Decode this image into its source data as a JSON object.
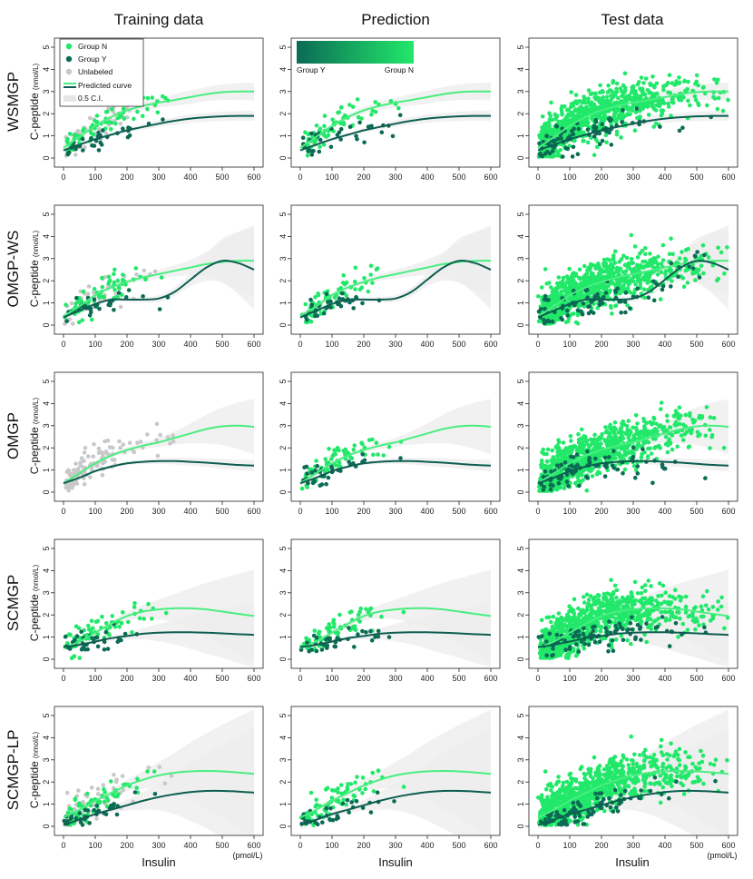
{
  "columns": [
    "Training data",
    "Prediction",
    "Test data"
  ],
  "rows": [
    "WSMGP",
    "OMGP-WS",
    "OMGP",
    "SCMGP",
    "SCMGP-LP"
  ],
  "ylabel": "C-peptide",
  "yunit": "(nmol/L)",
  "xlabel": "Insulin",
  "xunit": "(pmol/L)",
  "legend": {
    "group_n": "Group N",
    "group_y": "Group Y",
    "unlabeled": "Unlabeled",
    "predicted_curve": "Predicted curve",
    "ci": "0.5 C.I."
  },
  "colorbar": {
    "low": "Group Y",
    "high": "Group N"
  },
  "colors": {
    "group_n": "#22e86a",
    "group_y": "#0b6b55",
    "unlabeled": "#c8c8c8",
    "curve_n": "#49ee80",
    "curve_y": "#0d5e50",
    "band": "#ececec"
  },
  "chart_data": {
    "type": "scatter",
    "layout": "5 rows x 3 columns small multiples",
    "xlim": [
      0,
      600
    ],
    "ylim": [
      0,
      5
    ],
    "xticks": [
      0,
      100,
      200,
      300,
      400,
      500,
      600
    ],
    "yticks": [
      0,
      1,
      2,
      3,
      4,
      5
    ],
    "rows": [
      {
        "model": "WSMGP",
        "curve_n": [
          [
            0,
            0.45
          ],
          [
            50,
            0.95
          ],
          [
            100,
            1.45
          ],
          [
            150,
            1.85
          ],
          [
            200,
            2.15
          ],
          [
            250,
            2.35
          ],
          [
            300,
            2.5
          ],
          [
            350,
            2.62
          ],
          [
            400,
            2.75
          ],
          [
            450,
            2.88
          ],
          [
            500,
            2.97
          ],
          [
            550,
            3.0
          ],
          [
            600,
            3.0
          ]
        ],
        "curve_y": [
          [
            0,
            0.35
          ],
          [
            50,
            0.6
          ],
          [
            100,
            0.85
          ],
          [
            150,
            1.05
          ],
          [
            200,
            1.25
          ],
          [
            250,
            1.4
          ],
          [
            300,
            1.55
          ],
          [
            350,
            1.68
          ],
          [
            400,
            1.78
          ],
          [
            450,
            1.84
          ],
          [
            500,
            1.88
          ],
          [
            550,
            1.9
          ],
          [
            600,
            1.9
          ]
        ],
        "band_n": [
          0.18,
          0.15,
          0.12,
          0.12,
          0.15,
          0.18,
          0.22,
          0.26,
          0.3,
          0.32,
          0.35,
          0.38,
          0.4
        ],
        "band_y": [
          0.12,
          0.1,
          0.08,
          0.08,
          0.1,
          0.12,
          0.15,
          0.17,
          0.19,
          0.2,
          0.21,
          0.22,
          0.22
        ]
      },
      {
        "model": "OMGP-WS",
        "curve_n": [
          [
            0,
            0.4
          ],
          [
            50,
            0.85
          ],
          [
            100,
            1.35
          ],
          [
            150,
            1.7
          ],
          [
            200,
            1.95
          ],
          [
            250,
            2.15
          ],
          [
            300,
            2.3
          ],
          [
            350,
            2.45
          ],
          [
            400,
            2.6
          ],
          [
            450,
            2.75
          ],
          [
            500,
            2.85
          ],
          [
            550,
            2.9
          ],
          [
            600,
            2.9
          ]
        ],
        "curve_y": [
          [
            0,
            0.35
          ],
          [
            50,
            0.65
          ],
          [
            100,
            0.95
          ],
          [
            150,
            1.15
          ],
          [
            200,
            1.15
          ],
          [
            250,
            1.15
          ],
          [
            300,
            1.2
          ],
          [
            350,
            1.5
          ],
          [
            400,
            2.05
          ],
          [
            450,
            2.6
          ],
          [
            500,
            2.9
          ],
          [
            550,
            2.8
          ],
          [
            600,
            2.5
          ]
        ],
        "band_n": [
          0.15,
          0.12,
          0.1,
          0.1,
          0.12,
          0.15,
          0.2,
          0.25,
          0.35,
          0.55,
          0.9,
          1.3,
          1.6
        ],
        "band_y": [
          0.12,
          0.1,
          0.08,
          0.08,
          0.1,
          0.12,
          0.15,
          0.2,
          0.3,
          0.6,
          1.0,
          1.4,
          1.8
        ]
      },
      {
        "model": "OMGP",
        "curve_n": [
          [
            0,
            0.4
          ],
          [
            50,
            0.85
          ],
          [
            100,
            1.3
          ],
          [
            150,
            1.65
          ],
          [
            200,
            1.9
          ],
          [
            250,
            2.1
          ],
          [
            300,
            2.25
          ],
          [
            350,
            2.45
          ],
          [
            400,
            2.65
          ],
          [
            450,
            2.85
          ],
          [
            500,
            2.97
          ],
          [
            550,
            3.0
          ],
          [
            600,
            2.95
          ]
        ],
        "curve_y": [
          [
            0,
            0.4
          ],
          [
            50,
            0.65
          ],
          [
            100,
            0.95
          ],
          [
            150,
            1.15
          ],
          [
            200,
            1.3
          ],
          [
            250,
            1.37
          ],
          [
            300,
            1.4
          ],
          [
            350,
            1.4
          ],
          [
            400,
            1.37
          ],
          [
            450,
            1.33
          ],
          [
            500,
            1.28
          ],
          [
            550,
            1.23
          ],
          [
            600,
            1.2
          ]
        ],
        "band_n": [
          0.15,
          0.12,
          0.1,
          0.1,
          0.12,
          0.15,
          0.2,
          0.3,
          0.45,
          0.65,
          0.85,
          1.05,
          1.25
        ],
        "band_y": [
          0.1,
          0.08,
          0.07,
          0.07,
          0.08,
          0.1,
          0.12,
          0.15,
          0.18,
          0.2,
          0.22,
          0.24,
          0.26
        ]
      },
      {
        "model": "SCMGP",
        "curve_n": [
          [
            0,
            0.5
          ],
          [
            50,
            0.8
          ],
          [
            100,
            1.2
          ],
          [
            150,
            1.6
          ],
          [
            200,
            1.95
          ],
          [
            250,
            2.15
          ],
          [
            300,
            2.25
          ],
          [
            350,
            2.3
          ],
          [
            400,
            2.3
          ],
          [
            450,
            2.25
          ],
          [
            500,
            2.15
          ],
          [
            550,
            2.05
          ],
          [
            600,
            1.95
          ]
        ],
        "curve_y": [
          [
            0,
            0.55
          ],
          [
            50,
            0.65
          ],
          [
            100,
            0.8
          ],
          [
            150,
            0.95
          ],
          [
            200,
            1.05
          ],
          [
            250,
            1.15
          ],
          [
            300,
            1.2
          ],
          [
            350,
            1.22
          ],
          [
            400,
            1.22
          ],
          [
            450,
            1.2
          ],
          [
            500,
            1.17
          ],
          [
            550,
            1.13
          ],
          [
            600,
            1.1
          ]
        ],
        "band_n": [
          0.15,
          0.12,
          0.1,
          0.12,
          0.2,
          0.3,
          0.45,
          0.65,
          0.9,
          1.2,
          1.5,
          1.8,
          2.1
        ],
        "band_y": [
          0.12,
          0.1,
          0.08,
          0.1,
          0.15,
          0.25,
          0.4,
          0.55,
          0.75,
          0.95,
          1.1,
          1.3,
          1.45
        ]
      },
      {
        "model": "SCMGP-LP",
        "curve_n": [
          [
            0,
            0.4
          ],
          [
            50,
            0.75
          ],
          [
            100,
            1.15
          ],
          [
            150,
            1.5
          ],
          [
            200,
            1.85
          ],
          [
            250,
            2.1
          ],
          [
            300,
            2.3
          ],
          [
            350,
            2.42
          ],
          [
            400,
            2.48
          ],
          [
            450,
            2.5
          ],
          [
            500,
            2.48
          ],
          [
            550,
            2.43
          ],
          [
            600,
            2.37
          ]
        ],
        "curve_y": [
          [
            0,
            0.05
          ],
          [
            50,
            0.3
          ],
          [
            100,
            0.55
          ],
          [
            150,
            0.75
          ],
          [
            200,
            0.95
          ],
          [
            250,
            1.15
          ],
          [
            300,
            1.32
          ],
          [
            350,
            1.45
          ],
          [
            400,
            1.55
          ],
          [
            450,
            1.6
          ],
          [
            500,
            1.6
          ],
          [
            550,
            1.57
          ],
          [
            600,
            1.52
          ]
        ],
        "band_n": [
          0.2,
          0.15,
          0.12,
          0.15,
          0.25,
          0.4,
          0.6,
          0.9,
          1.3,
          1.7,
          2.1,
          2.5,
          2.9
        ],
        "band_y": [
          0.2,
          0.15,
          0.12,
          0.15,
          0.25,
          0.4,
          0.6,
          0.9,
          1.3,
          1.7,
          2.1,
          2.5,
          2.9
        ]
      }
    ]
  }
}
